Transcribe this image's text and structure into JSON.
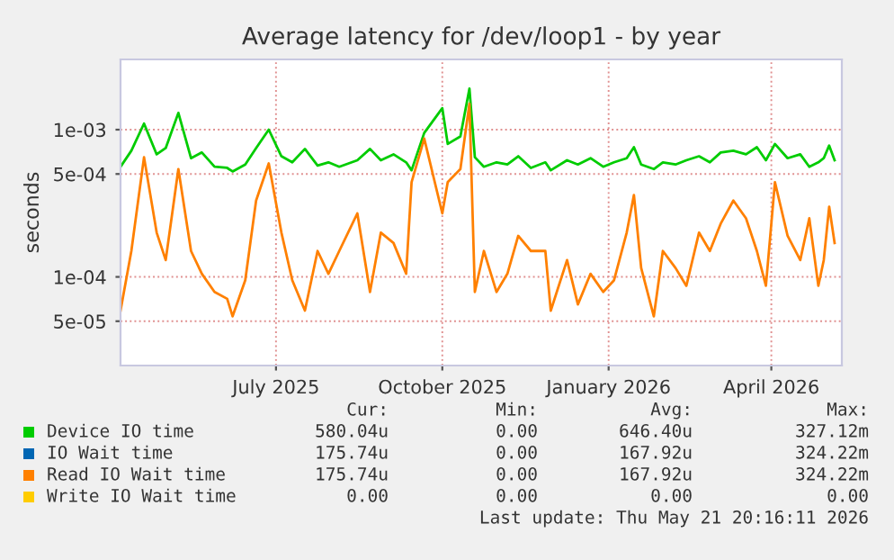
{
  "chart_data": {
    "type": "line",
    "title": "Average latency for /dev/loop1 - by year",
    "ylabel": "seconds",
    "log": "y",
    "grid": true,
    "legend": "bottom",
    "marker": "none",
    "line_style": "solid",
    "xlim": [
      "2025-04-06",
      "2026-05-10"
    ],
    "xticks": [
      {
        "value": "2025-07-01",
        "label": "July 2025"
      },
      {
        "value": "2025-10-01",
        "label": "October 2025"
      },
      {
        "value": "2026-01-01",
        "label": "January 2026"
      },
      {
        "value": "2026-04-01",
        "label": "April 2026"
      }
    ],
    "ylim": [
      2.5e-05,
      0.003
    ],
    "yticks": [
      {
        "value": 5e-05,
        "label": "5e-05"
      },
      {
        "value": 0.0001,
        "label": "1e-04"
      },
      {
        "value": 0.0005,
        "label": "5e-04"
      },
      {
        "value": 0.001,
        "label": "1e-03"
      }
    ],
    "x": [
      "2025-04-06",
      "2025-04-12",
      "2025-04-19",
      "2025-04-26",
      "2025-05-01",
      "2025-05-08",
      "2025-05-15",
      "2025-05-21",
      "2025-05-28",
      "2025-06-04",
      "2025-06-07",
      "2025-06-14",
      "2025-06-20",
      "2025-06-27",
      "2025-07-04",
      "2025-07-10",
      "2025-07-17",
      "2025-07-24",
      "2025-07-30",
      "2025-08-05",
      "2025-08-15",
      "2025-08-22",
      "2025-08-28",
      "2025-09-04",
      "2025-09-11",
      "2025-09-14",
      "2025-09-21",
      "2025-10-01",
      "2025-10-04",
      "2025-10-11",
      "2025-10-16",
      "2025-10-19",
      "2025-10-24",
      "2025-10-31",
      "2025-11-06",
      "2025-11-12",
      "2025-11-19",
      "2025-11-27",
      "2025-11-30",
      "2025-12-09",
      "2025-12-15",
      "2025-12-22",
      "2025-12-29",
      "2026-01-04",
      "2026-01-11",
      "2026-01-15",
      "2026-01-19",
      "2026-01-26",
      "2026-01-31",
      "2026-02-07",
      "2026-02-13",
      "2026-02-20",
      "2026-02-26",
      "2026-03-04",
      "2026-03-11",
      "2026-03-18",
      "2026-03-24",
      "2026-03-29",
      "2026-04-03",
      "2026-04-10",
      "2026-04-17",
      "2026-04-22",
      "2026-04-27",
      "2026-04-30",
      "2026-05-03",
      "2026-05-06"
    ],
    "series": [
      {
        "name": "Device IO time",
        "color": "#00cc00",
        "values": [
          0.00056,
          0.00072,
          0.0011,
          0.00068,
          0.00075,
          0.0013,
          0.00064,
          0.0007,
          0.00056,
          0.00055,
          0.00052,
          0.00058,
          0.00075,
          0.001,
          0.00066,
          0.0006,
          0.00074,
          0.00057,
          0.0006,
          0.00056,
          0.00062,
          0.00074,
          0.00062,
          0.00068,
          0.0006,
          0.00053,
          0.00095,
          0.0014,
          0.0008,
          0.0009,
          0.0019,
          0.00065,
          0.00056,
          0.0006,
          0.00058,
          0.00066,
          0.00055,
          0.0006,
          0.00053,
          0.00062,
          0.00058,
          0.00064,
          0.00056,
          0.0006,
          0.00064,
          0.00076,
          0.00058,
          0.00054,
          0.0006,
          0.00058,
          0.00062,
          0.00066,
          0.0006,
          0.0007,
          0.00072,
          0.00068,
          0.00076,
          0.00062,
          0.0008,
          0.00064,
          0.00068,
          0.00056,
          0.0006,
          0.00064,
          0.00078,
          0.00062
        ]
      },
      {
        "name": "IO Wait time",
        "color": "#0066b3",
        "values": [
          null,
          null,
          null,
          null,
          null,
          null,
          null,
          null,
          null,
          null,
          null,
          null,
          null,
          null,
          null,
          null,
          null,
          null,
          null,
          null,
          null,
          null,
          null,
          null,
          null,
          null,
          null,
          null,
          null,
          null,
          null,
          null,
          null,
          null,
          null,
          null,
          null,
          null,
          null,
          null,
          null,
          null,
          null,
          null,
          null,
          null,
          null,
          null,
          null,
          null,
          null,
          null,
          null,
          null,
          null,
          null,
          null,
          null,
          null,
          null,
          null,
          null,
          null,
          null,
          null,
          null
        ]
      },
      {
        "name": "Read IO Wait time",
        "color": "#ff8000",
        "values": [
          5.9e-05,
          0.00015,
          0.00065,
          0.0002,
          0.00013,
          0.00054,
          0.00015,
          0.000105,
          7.9e-05,
          7.1e-05,
          5.4e-05,
          9.5e-05,
          0.00033,
          0.00059,
          0.0002,
          9.5e-05,
          5.9e-05,
          0.00015,
          0.000105,
          0.00015,
          0.00027,
          7.9e-05,
          0.0002,
          0.00017,
          0.000105,
          0.00044,
          0.00087,
          0.00027,
          0.00044,
          0.00054,
          0.0015,
          7.9e-05,
          0.00015,
          7.9e-05,
          0.000105,
          0.00019,
          0.00015,
          0.00015,
          5.9e-05,
          0.00013,
          6.5e-05,
          0.000105,
          7.9e-05,
          9.5e-05,
          0.0002,
          0.00036,
          0.000115,
          5.4e-05,
          0.00015,
          0.000115,
          8.7e-05,
          0.0002,
          0.00015,
          0.00023,
          0.00033,
          0.00025,
          0.00015,
          8.7e-05,
          0.00044,
          0.00019,
          0.00013,
          0.00025,
          8.7e-05,
          0.00013,
          0.0003,
          0.00017
        ]
      },
      {
        "name": "Write IO Wait time",
        "color": "#ffcc00",
        "values": [
          null,
          null,
          null,
          null,
          null,
          null,
          null,
          null,
          null,
          null,
          null,
          null,
          null,
          null,
          null,
          null,
          null,
          null,
          null,
          null,
          null,
          null,
          null,
          null,
          null,
          null,
          null,
          null,
          null,
          null,
          null,
          null,
          null,
          null,
          null,
          null,
          null,
          null,
          null,
          null,
          null,
          null,
          null,
          null,
          null,
          null,
          null,
          null,
          null,
          null,
          null,
          null,
          null,
          null,
          null,
          null,
          null,
          null,
          null,
          null,
          null,
          null,
          null,
          null,
          null,
          null
        ]
      }
    ],
    "annotations": [
      "Cur:",
      "Min:",
      "Avg:",
      "Max:",
      "580.04u",
      "0.00",
      "646.40u",
      "327.12m",
      "175.74u",
      "0.00",
      "167.92u",
      "324.22m",
      "175.74u",
      "0.00",
      "167.92u",
      "324.22m",
      "0.00",
      "0.00",
      "0.00",
      "0.00",
      "Last update: Thu May 21 20:16:11 2026"
    ]
  }
}
